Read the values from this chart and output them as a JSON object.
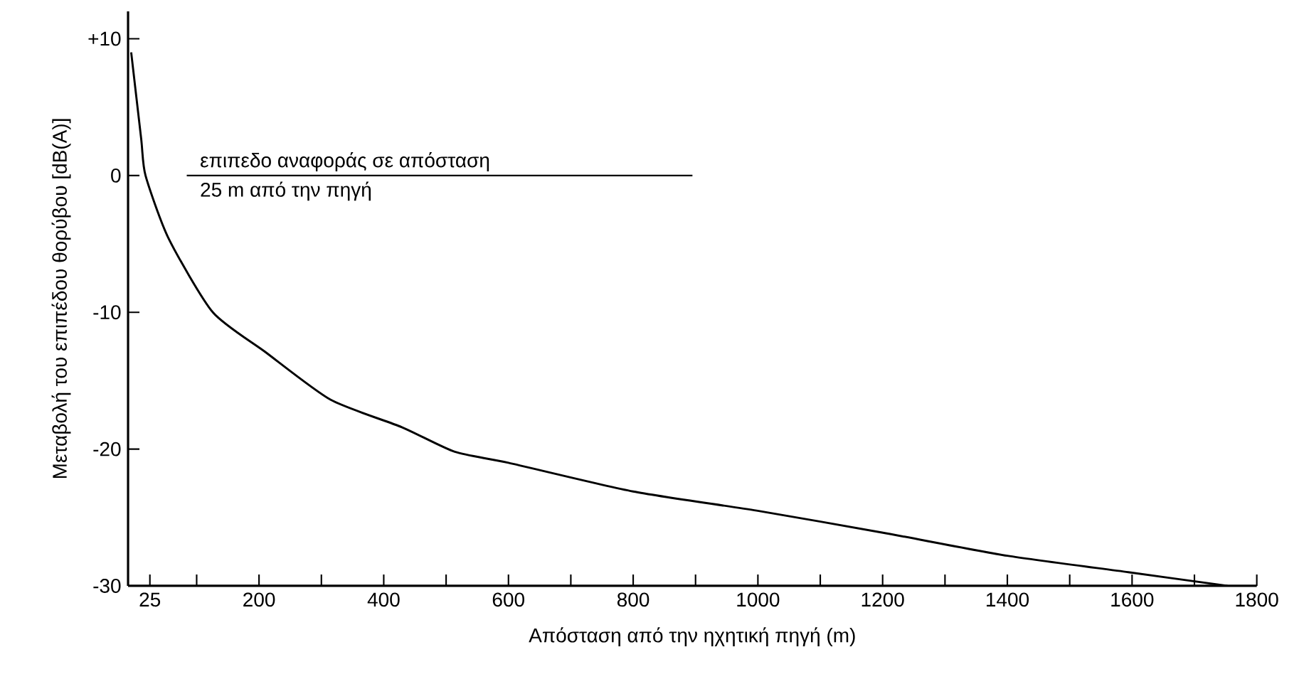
{
  "chart_data": {
    "type": "line",
    "xlabel": "Απόσταση από την ηχητική πηγή (m)",
    "ylabel": "Μεταβολή του επιπέδου θορύβου [dB(A)]",
    "xlim": [
      -10,
      1800
    ],
    "ylim": [
      -30,
      12
    ],
    "xticks": [
      25,
      {
        "value": 100,
        "label": null
      },
      200,
      {
        "value": 300,
        "label": null
      },
      400,
      {
        "value": 500,
        "label": null
      },
      600,
      {
        "value": 700,
        "label": null
      },
      800,
      {
        "value": 900,
        "label": null
      },
      1000,
      {
        "value": 1100,
        "label": null
      },
      1200,
      {
        "value": 1300,
        "label": null
      },
      1400,
      {
        "value": 1500,
        "label": null
      },
      1600,
      {
        "value": 1700,
        "label": null
      },
      1800
    ],
    "yticks": [
      {
        "value": 10,
        "label": "+10"
      },
      0,
      -10,
      -20,
      -30
    ],
    "series": [
      {
        "color": "#000000",
        "x": [
          -5,
          11,
          18,
          55,
          126,
          210,
          315,
          429,
          514,
          600,
          800,
          998,
          1199,
          1400,
          1594,
          1753
        ],
        "values": [
          9,
          2.7,
          0,
          -4.6,
          -10,
          -12.9,
          -16.4,
          -18.4,
          -20.2,
          -21,
          -23.1,
          -24.5,
          -26.1,
          -27.8,
          -29,
          -30
        ]
      }
    ],
    "ref_lines": [
      {
        "axis": "y",
        "value": 0,
        "label": "επιπεδο αναφοράς σε απόσταση"
      }
    ],
    "annotations": [
      "25 m από την πηγή"
    ],
    "marker": "none",
    "line_style": "solid"
  }
}
